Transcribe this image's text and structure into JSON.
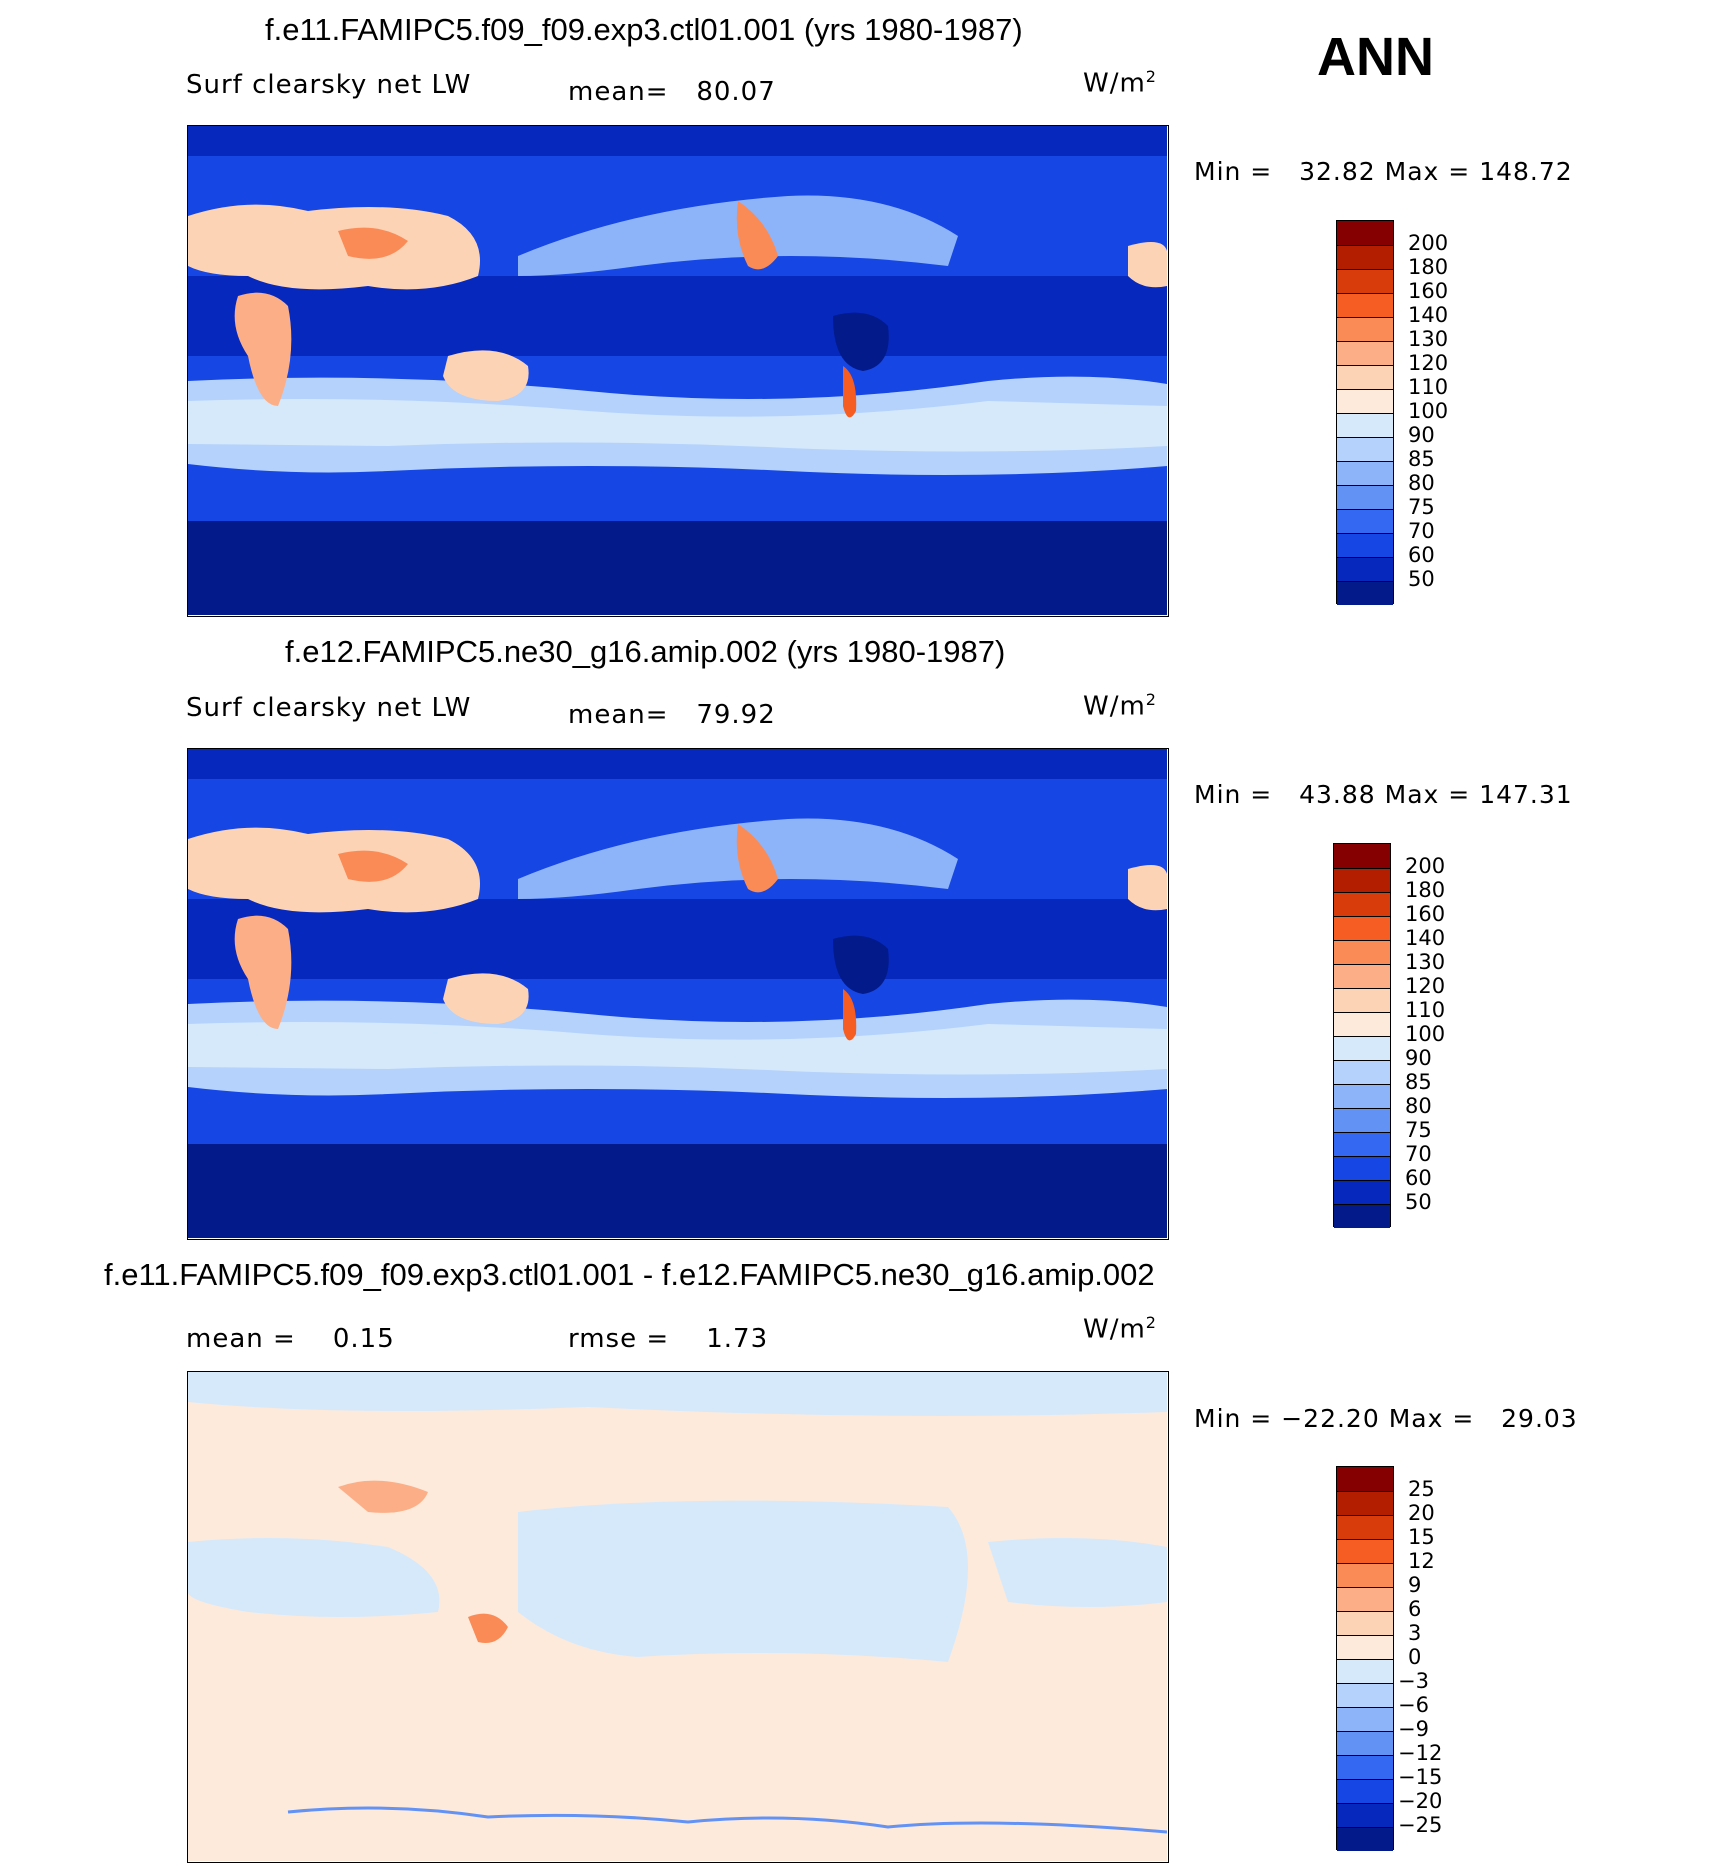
{
  "season": "ANN",
  "units": "W/m",
  "units_sup": "2",
  "panels": [
    {
      "title": "f.e11.FAMIPC5.f09_f09.exp3.ctl01.001 (yrs 1980-1987)",
      "variable": "Surf clearsky net LW",
      "stat_label": "mean=",
      "stat_value": "80.07",
      "min_label": "Min =",
      "min_value": "32.82",
      "max_label": "Max =",
      "max_value": "148.72",
      "field_mean": 80.07,
      "field_min": 32.82,
      "field_max": 148.72
    },
    {
      "title": "f.e12.FAMIPC5.ne30_g16.amip.002 (yrs 1980-1987)",
      "variable": "Surf clearsky net LW",
      "stat_label": "mean=",
      "stat_value": "79.92",
      "min_label": "Min =",
      "min_value": "43.88",
      "max_label": "Max =",
      "max_value": "147.31",
      "field_mean": 79.92,
      "field_min": 43.88,
      "field_max": 147.31
    },
    {
      "title": "f.e11.FAMIPC5.f09_f09.exp3.ctl01.001 - f.e12.FAMIPC5.ne30_g16.amip.002",
      "mean_label": "mean =",
      "mean_value": "0.15",
      "rmse_label": "rmse =",
      "rmse_value": "1.73",
      "min_label": "Min =",
      "min_value": "−22.20",
      "max_label": "Max =",
      "max_value": "29.03",
      "field_mean": 0.15,
      "field_rmse": 1.73,
      "field_min": -22.2,
      "field_max": 29.03
    }
  ],
  "colorbars": {
    "field": {
      "levels": [
        "200",
        "180",
        "160",
        "140",
        "130",
        "120",
        "110",
        "100",
        "90",
        "85",
        "80",
        "75",
        "70",
        "60",
        "50"
      ],
      "colors": [
        "#850000",
        "#b31e00",
        "#d83c0b",
        "#f55d23",
        "#fa8b56",
        "#fcae87",
        "#fdd3b6",
        "#fdeadb",
        "#d6e9fb",
        "#b4d2fb",
        "#8db4f8",
        "#6392f5",
        "#3468f3",
        "#1646e4",
        "#0628bd",
        "#031a8a"
      ]
    },
    "diff": {
      "levels": [
        "25",
        "20",
        "15",
        "12",
        "9",
        "6",
        "3",
        "0",
        "−3",
        "−6",
        "−9",
        "−12",
        "−15",
        "−20",
        "−25"
      ],
      "colors": [
        "#850000",
        "#b31e00",
        "#d83c0b",
        "#f55d23",
        "#fa8b56",
        "#fcae87",
        "#fdd3b6",
        "#fdeadb",
        "#d6e9fb",
        "#b4d2fb",
        "#8db4f8",
        "#6392f5",
        "#3468f3",
        "#1646e4",
        "#0628bd",
        "#031a8a"
      ]
    }
  }
}
